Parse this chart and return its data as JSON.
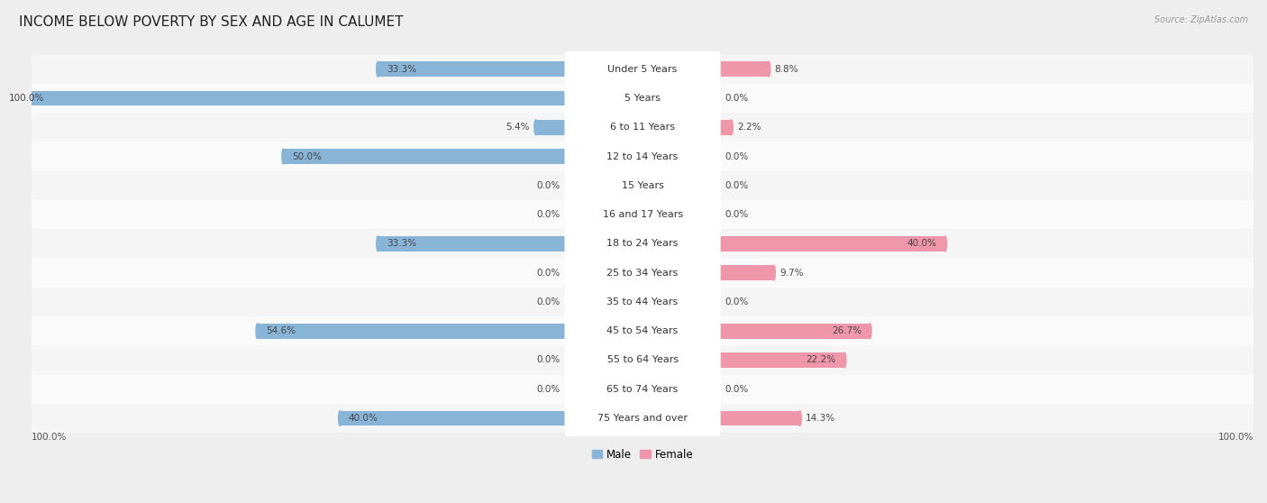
{
  "title": "INCOME BELOW POVERTY BY SEX AND AGE IN CALUMET",
  "source": "Source: ZipAtlas.com",
  "categories": [
    "Under 5 Years",
    "5 Years",
    "6 to 11 Years",
    "12 to 14 Years",
    "15 Years",
    "16 and 17 Years",
    "18 to 24 Years",
    "25 to 34 Years",
    "35 to 44 Years",
    "45 to 54 Years",
    "55 to 64 Years",
    "65 to 74 Years",
    "75 Years and over"
  ],
  "male": [
    33.3,
    100.0,
    5.4,
    50.0,
    0.0,
    0.0,
    33.3,
    0.0,
    0.0,
    54.6,
    0.0,
    0.0,
    40.0
  ],
  "female": [
    8.8,
    0.0,
    2.2,
    0.0,
    0.0,
    0.0,
    40.0,
    9.7,
    0.0,
    26.7,
    22.2,
    0.0,
    14.3
  ],
  "male_color": "#88b4d8",
  "female_color": "#f096aa",
  "bg_color": "#eeeeee",
  "row_bg_even": "#f5f5f5",
  "row_bg_odd": "#fafafa",
  "label_box_color": "#ffffff",
  "max_val": 100.0,
  "legend_male": "Male",
  "legend_female": "Female",
  "title_fontsize": 11,
  "label_fontsize": 8,
  "value_fontsize": 7.5,
  "source_fontsize": 7
}
